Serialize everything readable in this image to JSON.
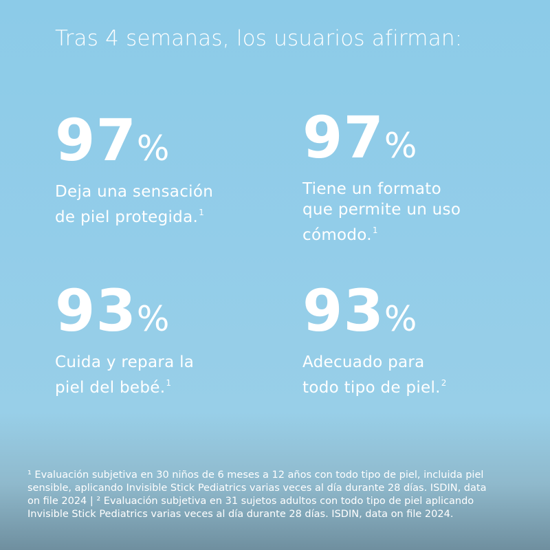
{
  "title": "Tras 4 semanas, los usuarios afirman:",
  "stats": [
    {
      "number": "97",
      "unit": "%",
      "lines": [
        "Deja una sensación",
        "de piel protegida."
      ],
      "note": "1"
    },
    {
      "number": "97",
      "unit": "%",
      "lines": [
        "Tiene un formato",
        "que permite un uso",
        "cómodo."
      ],
      "note": "1"
    },
    {
      "number": "93",
      "unit": "%",
      "lines": [
        "Cuida y repara la",
        "piel del bebé."
      ],
      "note": "1"
    },
    {
      "number": "93",
      "unit": "%",
      "lines": [
        "Adecuado para",
        "todo tipo de piel."
      ],
      "note": "2"
    }
  ],
  "footnote": [
    "¹ Evaluación subjetiva en 30 niños de 6 meses a 12 años con todo tipo de piel, incluida piel",
    "sensible, aplicando Invisible Stick Pediatrics varias veces al día durante 28 días. ISDIN, data",
    "on file 2024 | ² Evaluación subjetiva en 31 sujetos adultos con todo tipo de piel aplicando",
    "Invisible Stick Pediatrics varias veces al día durante 28 días. ISDIN, data on file 2024."
  ]
}
